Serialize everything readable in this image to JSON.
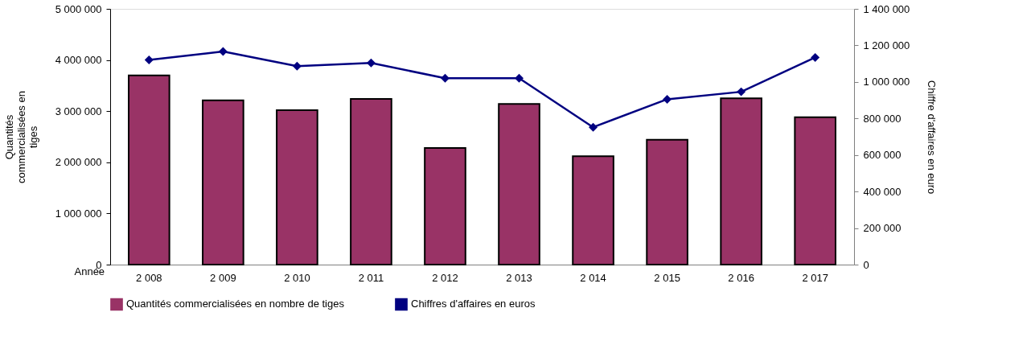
{
  "chart_data": {
    "type": "bar",
    "xlabel": "Année",
    "ylabel": "Quantités commercialisées en tiges",
    "y2label": "Chiffre d'affaires en euro",
    "categories": [
      "2 008",
      "2 009",
      "2 010",
      "2 011",
      "2 012",
      "2 013",
      "2 014",
      "2 015",
      "2 016",
      "2 017"
    ],
    "series": [
      {
        "name": "Quantités commercialisées en nombre de tiges",
        "color": "#993366",
        "values": [
          3700000,
          3210000,
          3020000,
          3240000,
          2280000,
          3140000,
          2120000,
          2440000,
          3250000,
          2880000
        ]
      },
      {
        "name": "Chiffres d'affaires en euros",
        "type": "line",
        "axis": "y2",
        "color": "#000080",
        "marker": "diamond",
        "values": [
          1120000,
          1167000,
          1086000,
          1104000,
          1020000,
          1020000,
          752000,
          905000,
          946000,
          1134000
        ]
      }
    ],
    "ylim": [
      0,
      5000000
    ],
    "yticks": [
      0,
      {
        "value": 1000000,
        "label": "1 000 000"
      },
      {
        "value": 2000000,
        "label": "2 000 000"
      },
      {
        "value": 3000000,
        "label": "3 000 000"
      },
      {
        "value": 4000000,
        "label": "4 000 000"
      },
      {
        "value": 5000000,
        "label": "5 000 000"
      }
    ],
    "y2lim": [
      0,
      1400000
    ],
    "y2ticks": [
      0,
      {
        "value": 200000,
        "label": "200 000"
      },
      {
        "value": 400000,
        "label": "400 000"
      },
      {
        "value": 600000,
        "label": "600 000"
      },
      {
        "value": 800000,
        "label": "800 000"
      },
      {
        "value": 1000000,
        "label": "1 000 000"
      },
      {
        "value": 1200000,
        "label": "1 200 000"
      },
      {
        "value": 1400000,
        "label": "1 400 000"
      }
    ],
    "grid": false,
    "legend": "bottom"
  }
}
